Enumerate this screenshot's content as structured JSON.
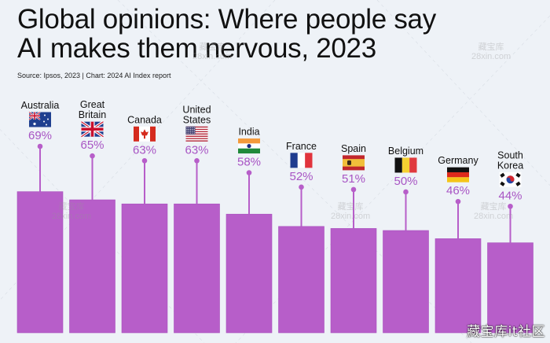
{
  "header": {
    "title_line1": "Global opinions: Where people say",
    "title_line2": "AI makes them nervous, 2023",
    "source": "Source: Ipsos, 2023 | Chart: 2024 AI Index report"
  },
  "watermark": {
    "corner_text": "藏宝库it社区",
    "faint_text_cn": "藏宝库",
    "faint_text_url": "28xin.com"
  },
  "colors": {
    "bar": "#b75ec9",
    "label": "#a855c4",
    "background": "#eef2f7",
    "text": "#111111"
  },
  "chart_data": {
    "type": "bar",
    "title": "Global opinions: Where people say AI makes them nervous, 2023",
    "subtitle": "Source: Ipsos, 2023 | Chart: 2024 AI Index report",
    "xlabel": "",
    "ylabel": "",
    "unit": "%",
    "grid": false,
    "legend": "none",
    "categories": [
      "Australia",
      "Great Britain",
      "Canada",
      "United States",
      "India",
      "France",
      "Spain",
      "Belgium",
      "Germany",
      "South Korea"
    ],
    "category_lines": [
      [
        "Australia"
      ],
      [
        "Great",
        "Britain"
      ],
      [
        "Canada"
      ],
      [
        "United",
        "States"
      ],
      [
        "India"
      ],
      [
        "France"
      ],
      [
        "Spain"
      ],
      [
        "Belgium"
      ],
      [
        "Germany"
      ],
      [
        "South",
        "Korea"
      ]
    ],
    "flags": [
      "australia-flag",
      "uk-flag",
      "canada-flag",
      "usa-flag",
      "india-flag",
      "france-flag",
      "spain-flag",
      "belgium-flag",
      "germany-flag",
      "south-korea-flag"
    ],
    "values": [
      69,
      65,
      63,
      63,
      58,
      52,
      51,
      50,
      46,
      44
    ],
    "value_labels": [
      "69%",
      "65%",
      "63%",
      "63%",
      "58%",
      "52%",
      "51%",
      "50%",
      "46%",
      "44%"
    ]
  }
}
